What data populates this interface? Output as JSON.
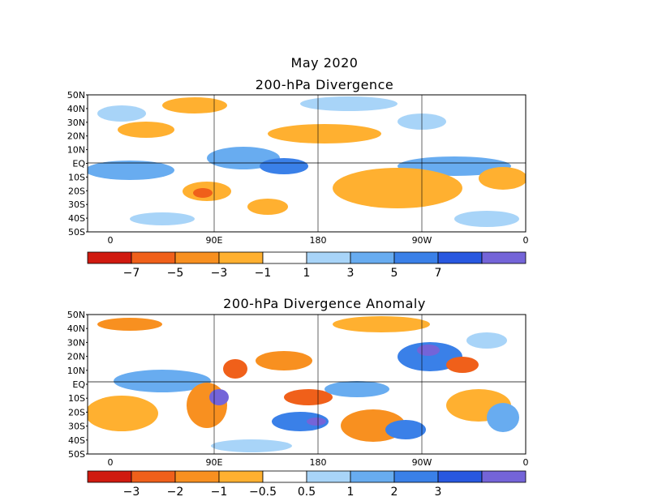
{
  "title": "May 2020",
  "panels": [
    {
      "subtitle": "200-hPa Divergence",
      "lat_labels": [
        "50N",
        "40N",
        "30N",
        "20N",
        "10N",
        "EQ",
        "10S",
        "20S",
        "30S",
        "40S",
        "50S"
      ],
      "lon_labels": [
        "0",
        "90E",
        "180",
        "90W",
        "0"
      ],
      "colorbar": {
        "colors": [
          "#d01a10",
          "#f0601a",
          "#f89020",
          "#ffb030",
          "#ffffff",
          "#a8d4f8",
          "#68acf0",
          "#3a80e8",
          "#2858e0",
          "#7464d8"
        ],
        "labels": [
          "-7",
          "-5",
          "-3",
          "-1",
          "1",
          "3",
          "5",
          "7"
        ]
      }
    },
    {
      "subtitle": "200-hPa Divergence Anomaly",
      "lat_labels": [
        "50N",
        "40N",
        "30N",
        "20N",
        "10N",
        "EQ",
        "10S",
        "20S",
        "30S",
        "40S",
        "50S"
      ],
      "lon_labels": [
        "0",
        "90E",
        "180",
        "90W",
        "0"
      ],
      "colorbar": {
        "colors": [
          "#d01a10",
          "#f0601a",
          "#f89020",
          "#ffb030",
          "#ffffff",
          "#a8d4f8",
          "#68acf0",
          "#3a80e8",
          "#2858e0",
          "#7464d8"
        ],
        "labels": [
          "-3",
          "-2",
          "-1",
          "-0.5",
          "0.5",
          "1",
          "2",
          "3"
        ]
      }
    }
  ]
}
